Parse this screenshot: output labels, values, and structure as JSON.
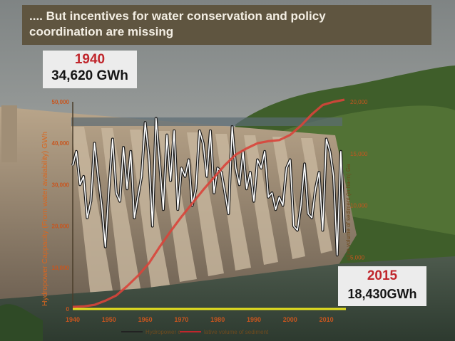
{
  "header": {
    "title_line1": ".... But incentives for water conservation and policy",
    "title_line2": "coordination are missing"
  },
  "callouts": {
    "start": {
      "year": "1940",
      "value": "34,620 GWh"
    },
    "end": {
      "year": "2015",
      "value": "18,430GWh"
    }
  },
  "colors": {
    "title_bg": "#5f5540",
    "accent_red": "#c0262c",
    "axis_yellow": "#e6e21f",
    "tick_orange": "#c8551e",
    "capacity_line": "#ffffff",
    "cumulative_line": "#d9443a"
  },
  "chart_data": {
    "type": "line",
    "xlabel": "",
    "ylabel": "Hydropower Cappacity (From water avaiability) GWh",
    "ylabel_right": "ative volume of sediment (in ha-m) Ga",
    "xlim": [
      1940,
      2015
    ],
    "ylim": [
      0,
      50000
    ],
    "ylim_right": [
      0,
      20000
    ],
    "x_ticks": [
      1940,
      1950,
      1960,
      1970,
      1980,
      1990,
      2000,
      2010
    ],
    "y_ticks": [
      0,
      10000,
      20000,
      30000,
      40000,
      50000
    ],
    "y_tick_labels": [
      "0",
      "10,000",
      "20,000",
      "30,000",
      "40,000",
      "50,000"
    ],
    "y_ticks_right": [
      5000,
      10000,
      15000,
      20000
    ],
    "y_tick_labels_right": [
      "5,000",
      "10,000",
      "15,000",
      "20,000"
    ],
    "legend": [
      "Hydropower c",
      "lative volume of sediment"
    ],
    "grid": false,
    "series": [
      {
        "name": "Hydropower c",
        "axis": "left",
        "x": [
          1940,
          1941,
          1942,
          1943,
          1944,
          1945,
          1946,
          1947,
          1948,
          1949,
          1950,
          1951,
          1952,
          1953,
          1954,
          1955,
          1956,
          1957,
          1958,
          1959,
          1960,
          1961,
          1962,
          1963,
          1964,
          1965,
          1966,
          1967,
          1968,
          1969,
          1970,
          1971,
          1972,
          1973,
          1974,
          1975,
          1976,
          1977,
          1978,
          1979,
          1980,
          1981,
          1982,
          1983,
          1984,
          1985,
          1986,
          1987,
          1988,
          1989,
          1990,
          1991,
          1992,
          1993,
          1994,
          1995,
          1996,
          1997,
          1998,
          1999,
          2000,
          2001,
          2002,
          2003,
          2004,
          2005,
          2006,
          2007,
          2008,
          2009,
          2010,
          2011,
          2012,
          2013,
          2014,
          2015
        ],
        "values": [
          34620,
          38000,
          30000,
          32000,
          22000,
          26000,
          40000,
          32000,
          25000,
          15000,
          29000,
          41000,
          28000,
          26000,
          39000,
          29000,
          38000,
          22000,
          27000,
          32000,
          45000,
          37000,
          20000,
          46000,
          35000,
          24000,
          42000,
          31000,
          43000,
          24000,
          34000,
          32000,
          36000,
          25000,
          29000,
          43000,
          40000,
          32000,
          43000,
          28000,
          34000,
          33000,
          28000,
          23000,
          44000,
          34000,
          30000,
          38000,
          29000,
          33000,
          26000,
          36000,
          34000,
          38000,
          27000,
          28000,
          24000,
          27000,
          25000,
          34000,
          36000,
          20000,
          19000,
          25000,
          35000,
          23000,
          22000,
          29000,
          33000,
          19000,
          41000,
          38000,
          32000,
          13000,
          38000,
          18430
        ]
      },
      {
        "name": "lative volume of sediment",
        "axis": "right",
        "x": [
          1940,
          1943,
          1946,
          1949,
          1952,
          1955,
          1958,
          1961,
          1964,
          1967,
          1970,
          1973,
          1976,
          1979,
          1982,
          1985,
          1988,
          1991,
          1994,
          1997,
          2000,
          2003,
          2006,
          2009,
          2012,
          2015
        ],
        "values": [
          200,
          250,
          400,
          800,
          1300,
          2200,
          3200,
          4400,
          6000,
          7500,
          8900,
          10200,
          11500,
          12700,
          13900,
          14900,
          15500,
          16000,
          16200,
          16300,
          16800,
          17700,
          18800,
          19700,
          20000,
          20200
        ]
      }
    ]
  }
}
